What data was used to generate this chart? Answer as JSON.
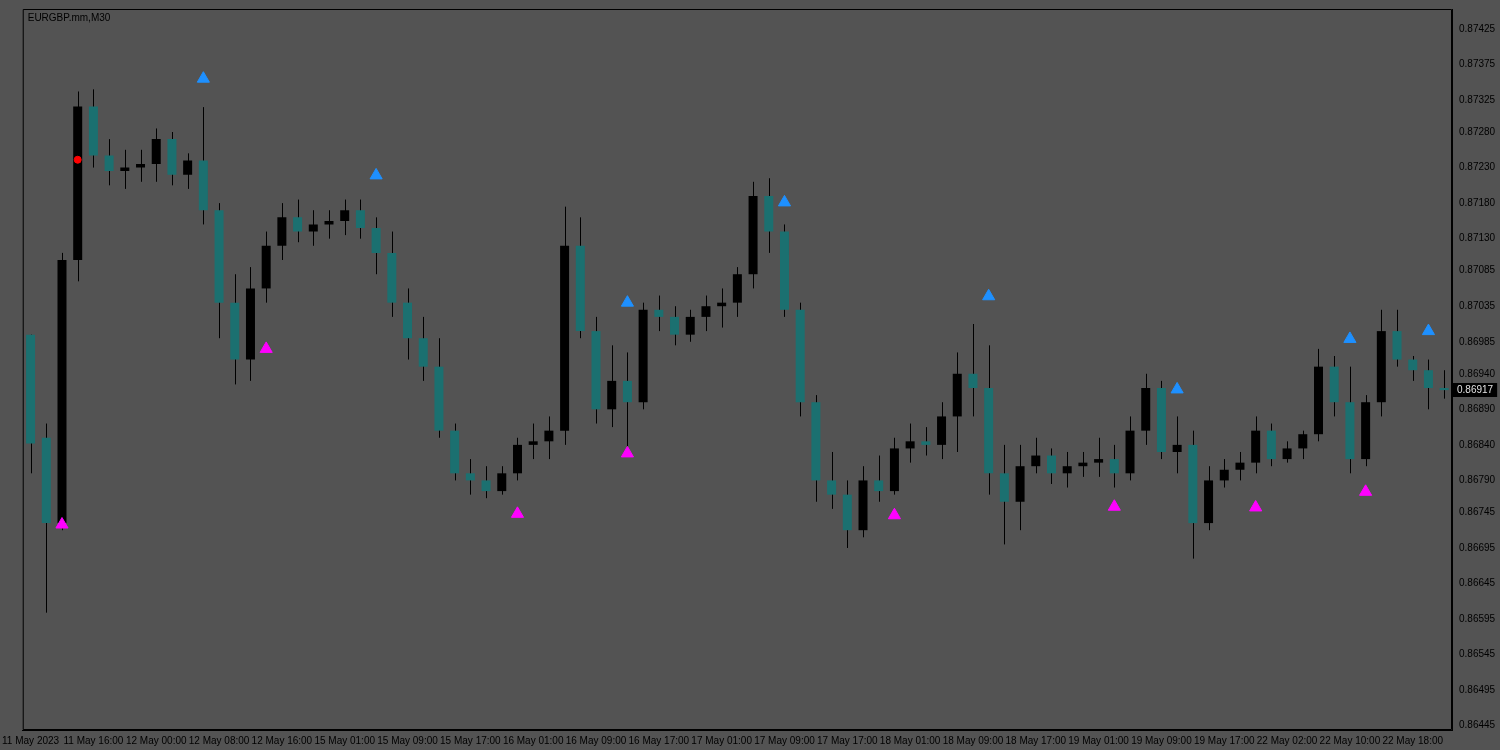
{
  "chart_data": {
    "type": "candlestick",
    "title": "EURGBP.mm,M30",
    "categories": [
      "11 May 2023",
      null,
      null,
      null,
      "11 May 16:00",
      null,
      null,
      null,
      "12 May 00:00",
      null,
      null,
      null,
      "12 May 08:00",
      null,
      null,
      null,
      "12 May 16:00",
      null,
      null,
      null,
      "15 May 01:00",
      null,
      null,
      null,
      "15 May 09:00",
      null,
      null,
      null,
      "15 May 17:00",
      null,
      null,
      null,
      "16 May 01:00",
      null,
      null,
      null,
      "16 May 09:00",
      null,
      null,
      null,
      "16 May 17:00",
      null,
      null,
      null,
      "17 May 01:00",
      null,
      null,
      null,
      "17 May 09:00",
      null,
      null,
      null,
      "17 May 17:00",
      null,
      null,
      null,
      "18 May 01:00",
      null,
      null,
      null,
      "18 May 09:00",
      null,
      null,
      null,
      "18 May 17:00",
      null,
      null,
      null,
      "19 May 01:00",
      null,
      null,
      null,
      "19 May 09:00",
      null,
      null,
      null,
      "19 May 17:00",
      null,
      null,
      null,
      "22 May 02:00",
      null,
      null,
      null,
      "22 May 10:00",
      null,
      null,
      null,
      "22 May 18:00",
      null,
      null
    ],
    "ohlc": [
      [
        0.86995,
        0.86995,
        0.868,
        0.86842
      ],
      [
        0.8685,
        0.8687,
        0.86604,
        0.8673
      ],
      [
        0.8673,
        0.8711,
        0.8672,
        0.871
      ],
      [
        0.871,
        0.87337,
        0.8707,
        0.87316
      ],
      [
        0.87316,
        0.8734,
        0.8723,
        0.87247
      ],
      [
        0.87247,
        0.8727,
        0.87205,
        0.87225
      ],
      [
        0.87225,
        0.87255,
        0.872,
        0.8723
      ],
      [
        0.8723,
        0.87255,
        0.8721,
        0.87235
      ],
      [
        0.87235,
        0.87285,
        0.8721,
        0.8727
      ],
      [
        0.8727,
        0.8728,
        0.87205,
        0.8722
      ],
      [
        0.8722,
        0.8725,
        0.872,
        0.8724
      ],
      [
        0.8724,
        0.87315,
        0.8715,
        0.8717
      ],
      [
        0.8717,
        0.8718,
        0.8699,
        0.8704
      ],
      [
        0.8704,
        0.8708,
        0.86925,
        0.8696
      ],
      [
        0.8696,
        0.8709,
        0.8693,
        0.8706
      ],
      [
        0.8706,
        0.8714,
        0.8704,
        0.8712
      ],
      [
        0.8712,
        0.8718,
        0.871,
        0.8716
      ],
      [
        0.8716,
        0.87185,
        0.87125,
        0.8714
      ],
      [
        0.8714,
        0.8717,
        0.8712,
        0.8715
      ],
      [
        0.8715,
        0.8717,
        0.8713,
        0.87155
      ],
      [
        0.87155,
        0.87185,
        0.87135,
        0.8717
      ],
      [
        0.8717,
        0.87185,
        0.8713,
        0.87145
      ],
      [
        0.87145,
        0.8716,
        0.8708,
        0.8711
      ],
      [
        0.8711,
        0.8714,
        0.8702,
        0.8704
      ],
      [
        0.8704,
        0.8706,
        0.8696,
        0.8699
      ],
      [
        0.8699,
        0.8702,
        0.8693,
        0.8695
      ],
      [
        0.8695,
        0.8699,
        0.8685,
        0.8686
      ],
      [
        0.8686,
        0.8687,
        0.8679,
        0.868
      ],
      [
        0.868,
        0.8682,
        0.8677,
        0.8679
      ],
      [
        0.8679,
        0.8681,
        0.86765,
        0.86775
      ],
      [
        0.86775,
        0.8681,
        0.8677,
        0.868
      ],
      [
        0.868,
        0.8685,
        0.8679,
        0.8684
      ],
      [
        0.8684,
        0.8687,
        0.8682,
        0.86845
      ],
      [
        0.86845,
        0.8688,
        0.8682,
        0.8686
      ],
      [
        0.8686,
        0.87175,
        0.8684,
        0.8712
      ],
      [
        0.8712,
        0.8716,
        0.8699,
        0.87
      ],
      [
        0.87,
        0.8702,
        0.8687,
        0.8689
      ],
      [
        0.8689,
        0.8698,
        0.86865,
        0.8693
      ],
      [
        0.8693,
        0.8697,
        0.86835,
        0.869
      ],
      [
        0.869,
        0.8704,
        0.8689,
        0.8703
      ],
      [
        0.8703,
        0.8705,
        0.87,
        0.8702
      ],
      [
        0.8702,
        0.87035,
        0.8698,
        0.86995
      ],
      [
        0.86995,
        0.8703,
        0.86985,
        0.8702
      ],
      [
        0.8702,
        0.8705,
        0.87,
        0.87035
      ],
      [
        0.87035,
        0.8706,
        0.87005,
        0.8704
      ],
      [
        0.8704,
        0.8709,
        0.8702,
        0.8708
      ],
      [
        0.8708,
        0.8721,
        0.8706,
        0.8719
      ],
      [
        0.8719,
        0.87215,
        0.8711,
        0.8714
      ],
      [
        0.8714,
        0.8715,
        0.8702,
        0.8703
      ],
      [
        0.8703,
        0.8704,
        0.8688,
        0.869
      ],
      [
        0.869,
        0.8691,
        0.8676,
        0.8679
      ],
      [
        0.8679,
        0.8683,
        0.8675,
        0.8677
      ],
      [
        0.8677,
        0.8679,
        0.86695,
        0.8672
      ],
      [
        0.8672,
        0.8681,
        0.8671,
        0.8679
      ],
      [
        0.8679,
        0.86825,
        0.8676,
        0.86775
      ],
      [
        0.86775,
        0.8685,
        0.8677,
        0.86835
      ],
      [
        0.86835,
        0.8687,
        0.86815,
        0.86845
      ],
      [
        0.86845,
        0.86865,
        0.86825,
        0.8684
      ],
      [
        0.8684,
        0.869,
        0.8682,
        0.8688
      ],
      [
        0.8688,
        0.8697,
        0.8683,
        0.8694
      ],
      [
        0.8694,
        0.8701,
        0.8688,
        0.8692
      ],
      [
        0.8692,
        0.8698,
        0.8677,
        0.868
      ],
      [
        0.868,
        0.8684,
        0.867,
        0.8676
      ],
      [
        0.8676,
        0.8684,
        0.8672,
        0.8681
      ],
      [
        0.8681,
        0.8685,
        0.868,
        0.86825
      ],
      [
        0.86825,
        0.86835,
        0.86785,
        0.868
      ],
      [
        0.868,
        0.8683,
        0.8678,
        0.8681
      ],
      [
        0.8681,
        0.8683,
        0.86795,
        0.86815
      ],
      [
        0.86815,
        0.8685,
        0.86795,
        0.8682
      ],
      [
        0.8682,
        0.8684,
        0.8678,
        0.868
      ],
      [
        0.868,
        0.8688,
        0.8679,
        0.8686
      ],
      [
        0.8686,
        0.8694,
        0.8684,
        0.8692
      ],
      [
        0.8692,
        0.8693,
        0.8682,
        0.8683
      ],
      [
        0.8683,
        0.8688,
        0.868,
        0.8684
      ],
      [
        0.8684,
        0.8686,
        0.8668,
        0.8673
      ],
      [
        0.8673,
        0.8681,
        0.8672,
        0.8679
      ],
      [
        0.8679,
        0.8682,
        0.8678,
        0.86805
      ],
      [
        0.86805,
        0.8683,
        0.8679,
        0.86815
      ],
      [
        0.86815,
        0.8688,
        0.868,
        0.8686
      ],
      [
        0.8686,
        0.8687,
        0.8681,
        0.8682
      ],
      [
        0.8682,
        0.86845,
        0.86815,
        0.86835
      ],
      [
        0.86835,
        0.8686,
        0.8682,
        0.86855
      ],
      [
        0.86855,
        0.86975,
        0.86845,
        0.8695
      ],
      [
        0.8695,
        0.86965,
        0.8688,
        0.869
      ],
      [
        0.869,
        0.8695,
        0.868,
        0.8682
      ],
      [
        0.8682,
        0.8691,
        0.8681,
        0.869
      ],
      [
        0.869,
        0.8703,
        0.8688,
        0.87
      ],
      [
        0.87,
        0.8703,
        0.8695,
        0.8696
      ],
      [
        0.8696,
        0.86965,
        0.8693,
        0.86945
      ],
      [
        0.86945,
        0.8696,
        0.8689,
        0.8692
      ],
      [
        0.8692,
        0.86945,
        0.86905,
        0.86917
      ]
    ],
    "colors": [
      "#1b7070",
      "#1b7070",
      "#000000",
      "#000000",
      "#1b7070",
      "#1b7070",
      "#000000",
      "#000000",
      "#000000",
      "#1b7070",
      "#000000",
      "#1b7070",
      "#1b7070",
      "#1b7070",
      "#000000",
      "#000000",
      "#000000",
      "#1b7070",
      "#000000",
      "#000000",
      "#000000",
      "#1b7070",
      "#1b7070",
      "#1b7070",
      "#1b7070",
      "#1b7070",
      "#1b7070",
      "#1b7070",
      "#1b7070",
      "#1b7070",
      "#000000",
      "#000000",
      "#000000",
      "#000000",
      "#000000",
      "#1b7070",
      "#1b7070",
      "#000000",
      "#1b7070",
      "#000000",
      "#1b7070",
      "#1b7070",
      "#000000",
      "#000000",
      "#000000",
      "#000000",
      "#000000",
      "#1b7070",
      "#1b7070",
      "#1b7070",
      "#1b7070",
      "#1b7070",
      "#1b7070",
      "#000000",
      "#1b7070",
      "#000000",
      "#000000",
      "#1b7070",
      "#000000",
      "#000000",
      "#1b7070",
      "#1b7070",
      "#1b7070",
      "#000000",
      "#000000",
      "#1b7070",
      "#000000",
      "#000000",
      "#000000",
      "#1b7070",
      "#000000",
      "#000000",
      "#1b7070",
      "#000000",
      "#1b7070",
      "#000000",
      "#000000",
      "#000000",
      "#000000",
      "#1b7070",
      "#000000",
      "#000000",
      "#000000",
      "#1b7070",
      "#1b7070",
      "#000000",
      "#000000",
      "#1b7070",
      "#1b7070",
      "#1b7070",
      "#1b7070"
    ],
    "ylim": [
      0.86439,
      0.87453
    ],
    "yticks": [
      {
        "value": 0.87425,
        "label": "0.87425"
      },
      {
        "value": 0.87375,
        "label": "0.87375"
      },
      {
        "value": 0.87325,
        "label": "0.87325"
      },
      {
        "value": 0.8728,
        "label": "0.87280"
      },
      {
        "value": 0.8723,
        "label": "0.87230"
      },
      {
        "value": 0.8718,
        "label": "0.87180"
      },
      {
        "value": 0.8713,
        "label": "0.87130"
      },
      {
        "value": 0.87085,
        "label": "0.87085"
      },
      {
        "value": 0.87035,
        "label": "0.87035"
      },
      {
        "value": 0.86985,
        "label": "0.86985"
      },
      {
        "value": 0.8694,
        "label": "0.86940"
      },
      {
        "value": 0.8689,
        "label": "0.86890"
      },
      {
        "value": 0.8684,
        "label": "0.86840"
      },
      {
        "value": 0.8679,
        "label": "0.86790"
      },
      {
        "value": 0.86745,
        "label": "0.86745"
      },
      {
        "value": 0.86695,
        "label": "0.86695"
      },
      {
        "value": 0.86645,
        "label": "0.86645"
      },
      {
        "value": 0.86595,
        "label": "0.86595"
      },
      {
        "value": 0.86545,
        "label": "0.86545"
      },
      {
        "value": 0.86495,
        "label": "0.86495"
      },
      {
        "value": 0.86445,
        "label": "0.86445"
      }
    ],
    "series": [
      {
        "type": "scatter",
        "marker": "triangle",
        "color": "#1e90ff",
        "values": [
          null,
          null,
          null,
          null,
          null,
          null,
          null,
          null,
          null,
          null,
          null,
          0.87355,
          null,
          null,
          null,
          null,
          null,
          null,
          null,
          null,
          null,
          null,
          0.87219,
          null,
          null,
          null,
          null,
          null,
          null,
          null,
          null,
          null,
          null,
          null,
          null,
          null,
          null,
          null,
          0.8704,
          null,
          null,
          null,
          null,
          null,
          null,
          null,
          null,
          null,
          0.87181,
          null,
          null,
          null,
          null,
          null,
          null,
          null,
          null,
          null,
          null,
          null,
          null,
          0.87049,
          null,
          null,
          null,
          null,
          null,
          null,
          null,
          null,
          null,
          null,
          null,
          0.86918,
          null,
          null,
          null,
          null,
          null,
          null,
          null,
          null,
          null,
          null,
          0.86989,
          null,
          null,
          null,
          null,
          0.87,
          null
        ]
      },
      {
        "type": "scatter",
        "marker": "triangle",
        "color": "#ff00ff",
        "values": [
          null,
          null,
          0.86728,
          null,
          null,
          null,
          null,
          null,
          null,
          null,
          null,
          null,
          null,
          null,
          null,
          0.86975,
          null,
          null,
          null,
          null,
          null,
          null,
          null,
          null,
          null,
          null,
          null,
          null,
          null,
          null,
          null,
          0.86743,
          null,
          null,
          null,
          null,
          null,
          null,
          0.86828,
          null,
          null,
          null,
          null,
          null,
          null,
          null,
          null,
          null,
          null,
          null,
          null,
          null,
          null,
          null,
          null,
          0.86741,
          null,
          null,
          null,
          null,
          null,
          null,
          null,
          null,
          null,
          null,
          null,
          null,
          null,
          0.86753,
          null,
          null,
          null,
          null,
          null,
          null,
          null,
          null,
          0.86752,
          null,
          null,
          null,
          null,
          null,
          null,
          0.86774,
          null,
          null,
          null,
          null,
          null
        ]
      },
      {
        "type": "scatter",
        "marker": "circle",
        "color": "#ff0000",
        "values": [
          null,
          null,
          null,
          0.87241,
          null,
          null,
          null,
          null,
          null,
          null,
          null,
          null,
          null,
          null,
          null,
          null,
          null,
          null,
          null,
          null,
          null,
          null,
          null,
          null,
          null,
          null,
          null,
          null,
          null,
          null,
          null,
          null,
          null,
          null,
          null,
          null,
          null,
          null,
          null,
          null,
          null,
          null,
          null,
          null,
          null,
          null,
          null,
          null,
          null,
          null,
          null,
          null,
          null,
          null,
          null,
          null,
          null,
          null,
          null,
          null,
          null,
          null,
          null,
          null,
          null,
          null,
          null,
          null,
          null,
          null,
          null,
          null,
          null,
          null,
          null,
          null,
          null,
          null,
          null,
          null,
          null,
          null,
          null,
          null,
          null,
          null,
          null,
          null,
          null,
          null,
          null
        ]
      }
    ],
    "annotations": [
      "0.86917"
    ],
    "legend": false,
    "grid": false
  }
}
